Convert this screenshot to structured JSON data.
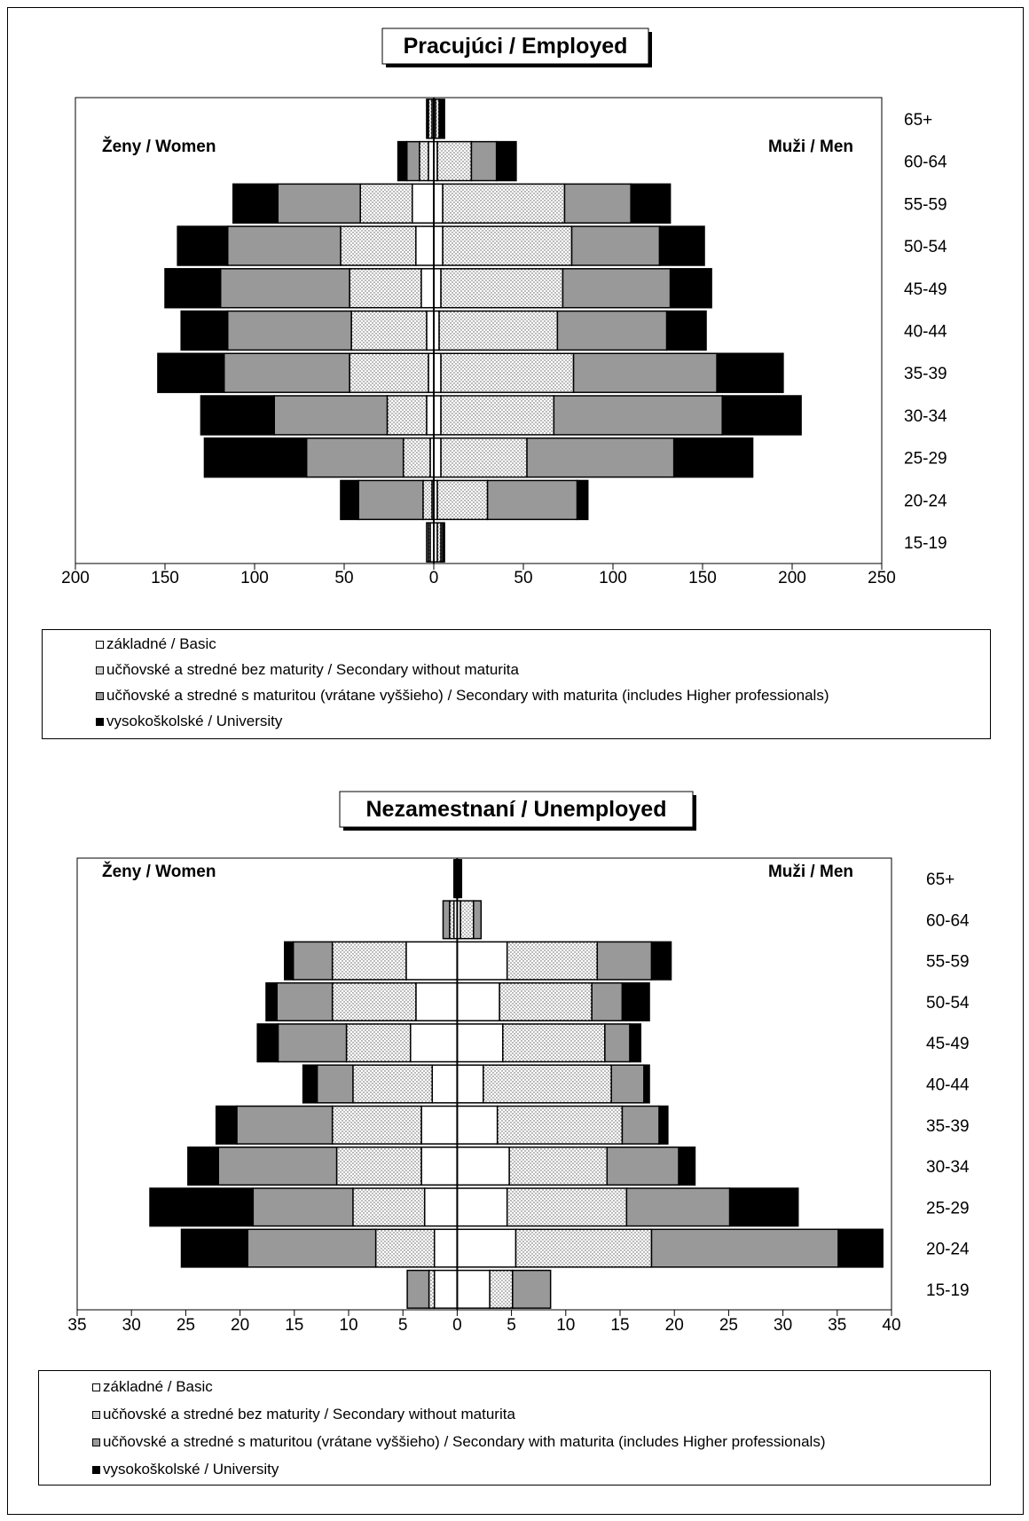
{
  "styles": {
    "colors": {
      "basic": "#ffffff",
      "secondary_without": "#e6e6e6",
      "secondary_with": "#999999",
      "university": "#000000"
    },
    "patterns": {
      "secondary_without": "dotted"
    }
  },
  "legend": {
    "items": [
      {
        "key": "basic",
        "label": "základné / Basic"
      },
      {
        "key": "secondary_without",
        "label": "učňovské a stredné bez maturity / Secondary without maturita"
      },
      {
        "key": "secondary_with",
        "label": "učňovské a stredné s maturitou (vrátane vyššieho) / Secondary with maturita (includes Higher professionals)"
      },
      {
        "key": "university",
        "label": "vysokoškolské / University"
      }
    ]
  },
  "chart_data": [
    {
      "type": "bar",
      "orientation": "horizontal-population-pyramid",
      "title": "Pracujúci / Employed",
      "left_label": "Ženy / Women",
      "right_label": "Muži / Men",
      "xlim": [
        -200,
        250
      ],
      "xticks": [
        "200",
        "150",
        "100",
        "50",
        "0",
        "50",
        "100",
        "150",
        "200",
        "250"
      ],
      "categories": [
        "65+",
        "60-64",
        "55-59",
        "50-54",
        "45-49",
        "40-44",
        "35-39",
        "30-34",
        "25-29",
        "20-24",
        "15-19"
      ],
      "women": [
        {
          "name": "základné / Basic",
          "values": [
            1,
            3,
            12,
            10,
            7,
            4,
            3,
            4,
            2,
            1,
            2
          ]
        },
        {
          "name": "učňovské a stredné bez maturity / Secondary without maturita",
          "values": [
            2,
            5,
            29,
            42,
            40,
            42,
            44,
            22,
            15,
            5,
            1
          ]
        },
        {
          "name": "učňovské a stredné s maturitou (vrátane vyššieho) / Secondary with maturita (includes Higher professionals)",
          "values": [
            0,
            7,
            46,
            63,
            72,
            69,
            70,
            63,
            54,
            36,
            1
          ]
        },
        {
          "name": "vysokoškolské / University",
          "values": [
            1,
            5,
            25,
            28,
            31,
            26,
            37,
            41,
            57,
            10,
            0
          ]
        }
      ],
      "men": [
        {
          "name": "základné / Basic",
          "values": [
            1,
            2,
            5,
            5,
            4,
            3,
            4,
            4,
            4,
            2,
            2
          ]
        },
        {
          "name": "učňovské a stredné bez maturity / Secondary without maturita",
          "values": [
            2,
            19,
            68,
            72,
            68,
            66,
            74,
            63,
            48,
            28,
            2
          ]
        },
        {
          "name": "učňovské a stredné s maturitou (vrátane vyššieho) / Secondary with maturita (includes Higher professionals)",
          "values": [
            0,
            14,
            37,
            49,
            60,
            61,
            80,
            94,
            82,
            50,
            1
          ]
        },
        {
          "name": "vysokoškolské / University",
          "values": [
            3,
            11,
            22,
            25,
            23,
            22,
            37,
            44,
            44,
            6,
            1
          ]
        }
      ]
    },
    {
      "type": "bar",
      "orientation": "horizontal-population-pyramid",
      "title": "Nezamestnaní / Unemployed",
      "left_label": "Ženy / Women",
      "right_label": "Muži / Men",
      "xlim": [
        -35,
        40
      ],
      "xticks": [
        "35",
        "30",
        "25",
        "20",
        "15",
        "10",
        "5",
        "0",
        "5",
        "10",
        "15",
        "20",
        "25",
        "30",
        "35",
        "40"
      ],
      "categories": [
        "65+",
        "60-64",
        "55-59",
        "50-54",
        "45-49",
        "40-44",
        "35-39",
        "30-34",
        "25-29",
        "20-24",
        "15-19"
      ],
      "women": [
        {
          "name": "základné / Basic",
          "values": [
            0.1,
            0.3,
            4.7,
            3.8,
            4.3,
            2.3,
            3.3,
            3.3,
            3.0,
            2.1,
            2.1
          ]
        },
        {
          "name": "učňovské a stredné bez maturity / Secondary without maturita",
          "values": [
            0.1,
            0.4,
            6.8,
            7.7,
            5.9,
            7.3,
            8.2,
            7.8,
            6.6,
            5.4,
            0.5
          ]
        },
        {
          "name": "učňovské a stredné s maturitou (vrátane vyššieho) / Secondary with maturita (includes Higher professionals)",
          "values": [
            0,
            0.6,
            3.6,
            5.1,
            6.3,
            3.3,
            8.8,
            10.9,
            9.2,
            11.8,
            2.0
          ]
        },
        {
          "name": "vysokoškolské / University",
          "values": [
            0.1,
            0,
            0.8,
            1.0,
            1.9,
            1.3,
            1.9,
            2.8,
            9.5,
            6.1,
            0
          ]
        }
      ],
      "men": [
        {
          "name": "základné / Basic",
          "values": [
            0.1,
            0.3,
            4.6,
            3.9,
            4.2,
            2.4,
            3.7,
            4.8,
            4.6,
            5.4,
            3.0
          ]
        },
        {
          "name": "učňovské a stredné bez maturity / Secondary without maturita",
          "values": [
            0.1,
            1.2,
            8.3,
            8.5,
            9.4,
            11.8,
            11.5,
            9.0,
            11.0,
            12.5,
            2.1
          ]
        },
        {
          "name": "učňovské a stredné s maturitou (vrátane vyššieho) / Secondary with maturita (includes Higher professionals)",
          "values": [
            0,
            0.7,
            5.0,
            2.8,
            2.3,
            3.0,
            3.4,
            6.6,
            9.5,
            17.2,
            3.5
          ]
        },
        {
          "name": "vysokoškolské / University",
          "values": [
            0.2,
            0,
            1.8,
            2.5,
            1.0,
            0.5,
            0.8,
            1.5,
            6.3,
            4.1,
            0
          ]
        }
      ]
    }
  ]
}
